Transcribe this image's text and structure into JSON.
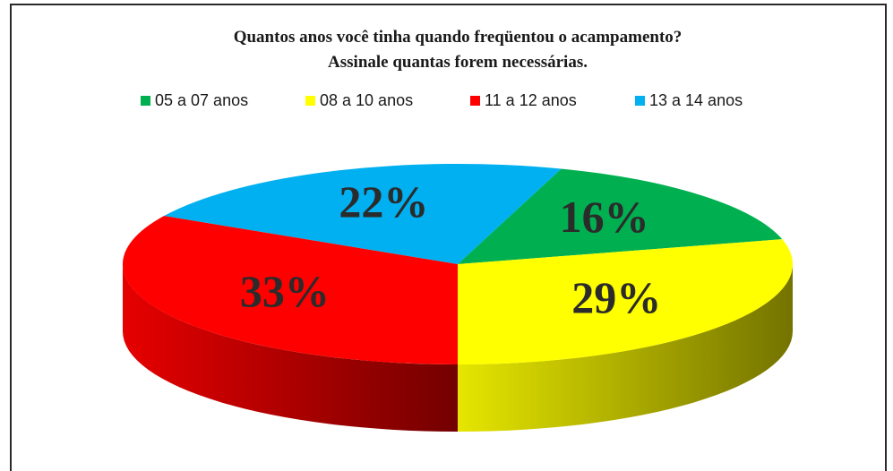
{
  "chart_data": {
    "type": "pie3d",
    "title": "Quantos anos você tinha quando freqüentou o acampamento?",
    "subtitle": "Assinale quantas forem necessárias.",
    "categories": [
      "05 a 07 anos",
      "08 a 10 anos",
      "11 a 12 anos",
      "13 a 14 anos"
    ],
    "values": [
      16,
      29,
      33,
      22
    ],
    "value_labels": [
      "16%",
      "29%",
      "33%",
      "22%"
    ],
    "colors": [
      "#00b050",
      "#ffff00",
      "#ff0000",
      "#00b0f0"
    ],
    "legend": "top"
  }
}
